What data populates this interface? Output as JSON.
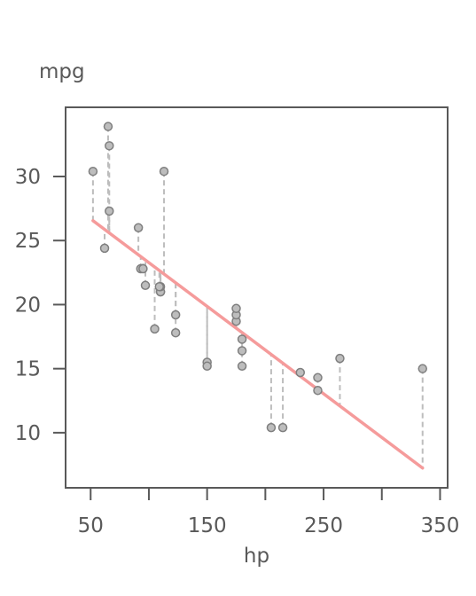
{
  "chart_data": {
    "type": "scatter",
    "xlabel": "hp",
    "ylabel": "mpg",
    "xlim": [
      28.5,
      356.5
    ],
    "ylim": [
      5.7,
      35.4
    ],
    "x_ticks": [
      50,
      100,
      150,
      200,
      250,
      300,
      350
    ],
    "x_tick_labels": [
      "50",
      "",
      "150",
      "",
      "250",
      "",
      "350"
    ],
    "y_ticks": [
      10,
      15,
      20,
      25,
      30
    ],
    "y_tick_labels": [
      "10",
      "15",
      "20",
      "25",
      "30"
    ],
    "grid": false,
    "colors": {
      "points_fill": "#bdbdbd",
      "points_stroke": "#7f7f7f",
      "residual_lines": "#bdbdbd",
      "regression_line": "#f59b9b",
      "frame": "#595959",
      "text": "#595959"
    },
    "points": [
      {
        "x": 110,
        "y": 21.0
      },
      {
        "x": 110,
        "y": 21.0
      },
      {
        "x": 93,
        "y": 22.8
      },
      {
        "x": 110,
        "y": 21.4
      },
      {
        "x": 175,
        "y": 18.7
      },
      {
        "x": 105,
        "y": 18.1
      },
      {
        "x": 245,
        "y": 14.3
      },
      {
        "x": 62,
        "y": 24.4
      },
      {
        "x": 95,
        "y": 22.8
      },
      {
        "x": 123,
        "y": 19.2
      },
      {
        "x": 123,
        "y": 17.8
      },
      {
        "x": 180,
        "y": 16.4
      },
      {
        "x": 180,
        "y": 17.3
      },
      {
        "x": 180,
        "y": 15.2
      },
      {
        "x": 205,
        "y": 10.4
      },
      {
        "x": 215,
        "y": 10.4
      },
      {
        "x": 230,
        "y": 14.7
      },
      {
        "x": 66,
        "y": 32.4
      },
      {
        "x": 52,
        "y": 30.4
      },
      {
        "x": 65,
        "y": 33.9
      },
      {
        "x": 97,
        "y": 21.5
      },
      {
        "x": 150,
        "y": 15.5
      },
      {
        "x": 150,
        "y": 15.2
      },
      {
        "x": 245,
        "y": 13.3
      },
      {
        "x": 175,
        "y": 19.2
      },
      {
        "x": 66,
        "y": 27.3
      },
      {
        "x": 91,
        "y": 26.0
      },
      {
        "x": 113,
        "y": 30.4
      },
      {
        "x": 264,
        "y": 15.8
      },
      {
        "x": 175,
        "y": 19.7
      },
      {
        "x": 335,
        "y": 15.0
      },
      {
        "x": 109,
        "y": 21.4
      }
    ],
    "regression": {
      "intercept": 30.0989,
      "slope": -0.06823
    }
  }
}
